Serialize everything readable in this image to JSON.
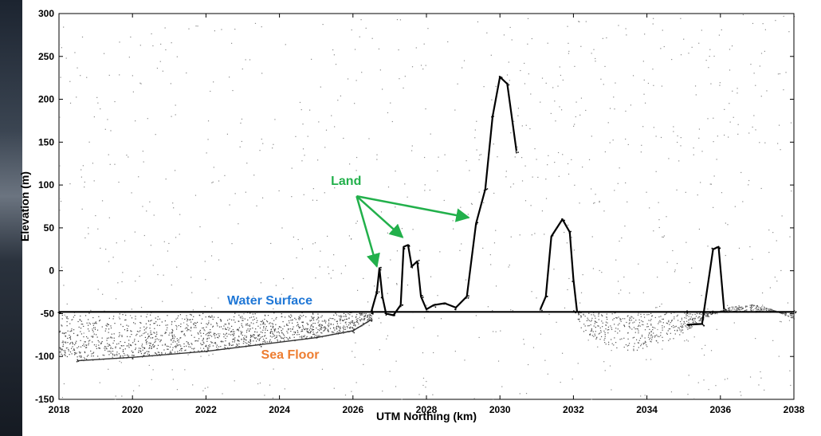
{
  "chart_data": {
    "type": "scatter",
    "xlabel": "UTM Northing (km)",
    "ylabel": "Elevation (m)",
    "xlim": [
      2018,
      2038
    ],
    "ylim": [
      -150,
      300
    ],
    "xticks": [
      2018,
      2020,
      2022,
      2024,
      2026,
      2028,
      2030,
      2032,
      2034,
      2036,
      2038
    ],
    "yticks": [
      -150,
      -100,
      -50,
      0,
      50,
      100,
      150,
      200,
      250,
      300
    ],
    "grid": false,
    "annotations": {
      "water_surface": {
        "text": "Water Surface",
        "color": "#1f77d6",
        "x": 2026.3,
        "y": -33
      },
      "sea_floor": {
        "text": "Sea Floor",
        "color": "#ed7d31",
        "x": 2025.5,
        "y": -97
      },
      "land": {
        "text": "Land",
        "color": "#22b04b",
        "x": 2026.1,
        "y": 107,
        "arrow_targets": [
          [
            2026.65,
            5
          ],
          [
            2027.35,
            39
          ],
          [
            2029.15,
            62
          ]
        ],
        "arrow_origin": [
          2026.1,
          87
        ]
      }
    },
    "series": [
      {
        "label": "water_surface",
        "points": [
          [
            2018.0,
            -48
          ],
          [
            2026.5,
            -48
          ],
          [
            2032.0,
            -48
          ],
          [
            2035.1,
            -48
          ],
          [
            2035.75,
            -48
          ],
          [
            2038.0,
            -48
          ]
        ]
      },
      {
        "label": "sea_floor",
        "points": [
          [
            2018.5,
            -105
          ],
          [
            2020.0,
            -101
          ],
          [
            2022.0,
            -94
          ],
          [
            2023.5,
            -86
          ],
          [
            2025.0,
            -78
          ],
          [
            2026.0,
            -70
          ],
          [
            2026.5,
            -57
          ]
        ]
      },
      {
        "label": "land_profile",
        "points": [
          [
            2026.5,
            -48
          ],
          [
            2026.65,
            -25
          ],
          [
            2026.72,
            3
          ],
          [
            2026.8,
            -30
          ],
          [
            2026.9,
            -50
          ],
          [
            2027.1,
            -52
          ],
          [
            2027.3,
            -40
          ],
          [
            2027.38,
            28
          ],
          [
            2027.5,
            30
          ],
          [
            2027.6,
            5
          ],
          [
            2027.75,
            11
          ],
          [
            2027.85,
            -30
          ],
          [
            2028.0,
            -45
          ],
          [
            2028.2,
            -40
          ],
          [
            2028.5,
            -38
          ],
          [
            2028.8,
            -43
          ],
          [
            2029.1,
            -30
          ],
          [
            2029.35,
            55
          ],
          [
            2029.6,
            95
          ],
          [
            2029.8,
            180
          ],
          [
            2030.0,
            226
          ],
          [
            2030.2,
            218
          ],
          [
            2030.45,
            140
          ]
        ]
      },
      {
        "label": "land_profile_2",
        "points": [
          [
            2031.1,
            -45
          ],
          [
            2031.25,
            -30
          ],
          [
            2031.4,
            40
          ],
          [
            2031.7,
            60
          ],
          [
            2031.9,
            45
          ],
          [
            2032.0,
            -10
          ],
          [
            2032.1,
            -48
          ]
        ]
      },
      {
        "label": "land_profile_3",
        "points": [
          [
            2035.1,
            -63
          ],
          [
            2035.5,
            -62
          ],
          [
            2035.8,
            25
          ],
          [
            2035.95,
            28
          ],
          [
            2036.1,
            -45
          ]
        ]
      }
    ]
  }
}
